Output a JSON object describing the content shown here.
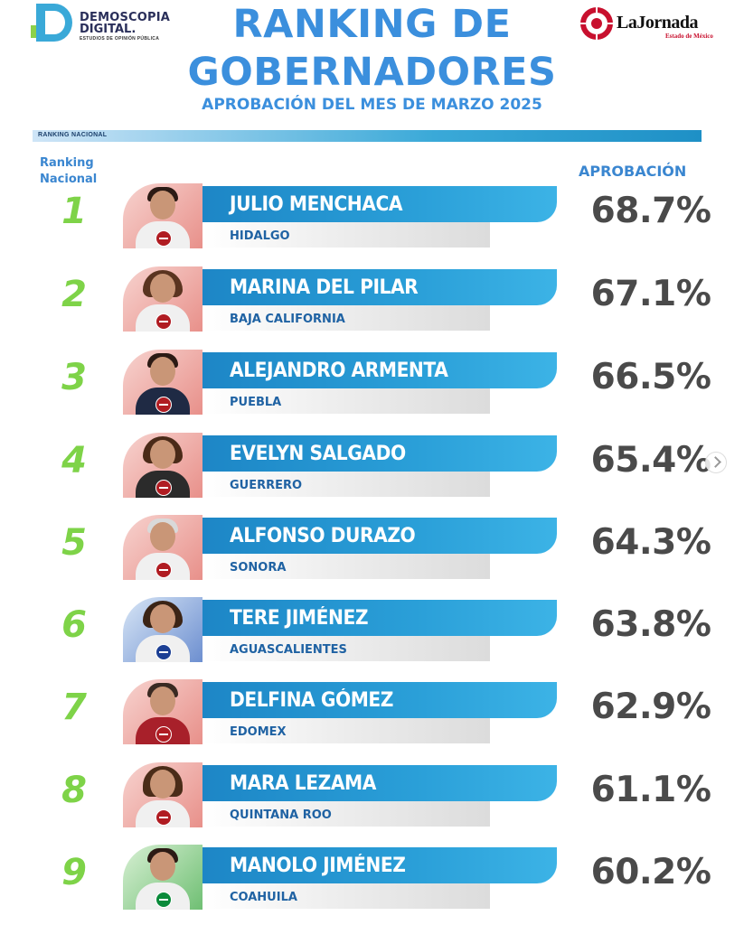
{
  "header": {
    "brand_left_line1": "DEMOSCOPIA",
    "brand_left_line2": "DIGITAL.",
    "brand_left_tagline": "ESTUDIOS DE OPINIÓN PÚBLICA",
    "title_line1": "RANKING DE",
    "title_line2": "GOBERNADORES",
    "subtitle": "APROBACIÓN DEL MES DE MARZO 2025",
    "brand_right_name": "LaJornada",
    "brand_right_sub": "Estado de México",
    "section_label": "RANKING NACIONAL"
  },
  "columns": {
    "left_header": "Ranking Nacional",
    "right_header": "APROBACIÓN"
  },
  "colors": {
    "title_blue": "#3b8fdd",
    "rank_green": "#7ed348",
    "bar_blue": "#1d86c6",
    "state_blue": "#1f62a3",
    "pct_gray": "#4a4a4a"
  },
  "rows": [
    {
      "rank": "1",
      "name": "JULIO MENCHACA",
      "state": "HIDALGO",
      "approval": "68.7%",
      "party_icon": "morena-logo"
    },
    {
      "rank": "2",
      "name": "MARINA DEL PILAR",
      "state": "BAJA CALIFORNIA",
      "approval": "67.1%",
      "party_icon": "morena-logo"
    },
    {
      "rank": "3",
      "name": "ALEJANDRO ARMENTA",
      "state": "PUEBLA",
      "approval": "66.5%",
      "party_icon": "morena-logo"
    },
    {
      "rank": "4",
      "name": "EVELYN SALGADO",
      "state": "GUERRERO",
      "approval": "65.4%",
      "party_icon": "morena-logo"
    },
    {
      "rank": "5",
      "name": "ALFONSO DURAZO",
      "state": "SONORA",
      "approval": "64.3%",
      "party_icon": "morena-logo"
    },
    {
      "rank": "6",
      "name": "TERE JIMÉNEZ",
      "state": "AGUASCALIENTES",
      "approval": "63.8%",
      "party_icon": "pan-logo"
    },
    {
      "rank": "7",
      "name": "DELFINA GÓMEZ",
      "state": "EDOMEX",
      "approval": "62.9%",
      "party_icon": "morena-logo"
    },
    {
      "rank": "8",
      "name": "MARA LEZAMA",
      "state": "QUINTANA ROO",
      "approval": "61.1%",
      "party_icon": "morena-logo"
    },
    {
      "rank": "9",
      "name": "MANOLO JIMÉNEZ",
      "state": "COAHUILA",
      "approval": "60.2%",
      "party_icon": "pri-logo"
    }
  ]
}
